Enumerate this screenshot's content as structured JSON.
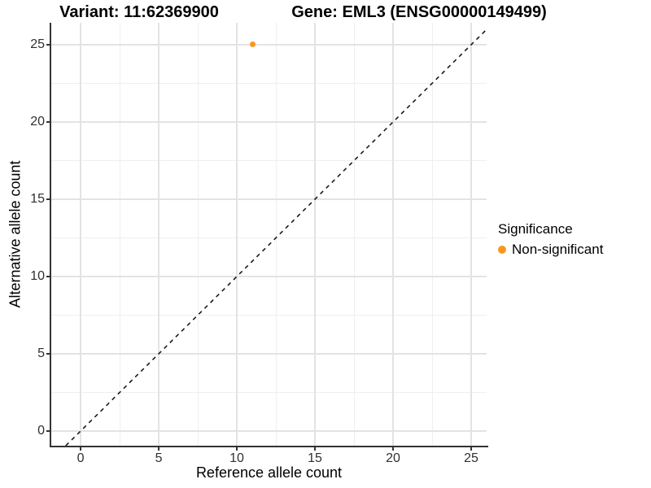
{
  "titles": {
    "variant": "Variant: 11:62369900",
    "gene": "Gene: EML3 (ENSG00000149499)"
  },
  "axes": {
    "x": {
      "label": "Reference allele count",
      "major_ticks": [
        0,
        5,
        10,
        15,
        20,
        25
      ],
      "minor_ticks": [
        2.5,
        7.5,
        12.5,
        17.5,
        22.5
      ],
      "range": [
        -1.88,
        25.99
      ]
    },
    "y": {
      "label": "Alternative allele count",
      "major_ticks": [
        0,
        5,
        10,
        15,
        20,
        25
      ],
      "minor_ticks": [
        2.5,
        7.5,
        12.5,
        17.5,
        22.5
      ],
      "range": [
        -0.95,
        26.42
      ]
    }
  },
  "legend": {
    "title": "Significance",
    "entries": [
      {
        "label": "Non-significant",
        "color": "#F89820"
      }
    ]
  },
  "colors": {
    "point": "#F89820",
    "grid_major": "#e3e3e3",
    "grid_minor": "#efefef",
    "axis_line": "#333333",
    "reference_line": "#1a1a1a"
  },
  "chart_data": {
    "type": "scatter",
    "title": "Variant: 11:62369900 | Gene: EML3 (ENSG00000149499)",
    "xlabel": "Reference allele count",
    "ylabel": "Alternative allele count",
    "xlim": [
      -1.88,
      25.99
    ],
    "ylim": [
      -0.95,
      26.42
    ],
    "x_ticks": [
      0,
      5,
      10,
      15,
      20,
      25
    ],
    "y_ticks": [
      0,
      5,
      10,
      15,
      20,
      25
    ],
    "grid": "major+minor",
    "legend_position": "right",
    "series": [
      {
        "name": "Non-significant",
        "color": "#F89820",
        "points": [
          {
            "x": 11,
            "y": 25
          }
        ]
      }
    ],
    "reference_line": {
      "type": "identity y=x",
      "style": "dashed",
      "color": "#1a1a1a"
    }
  }
}
